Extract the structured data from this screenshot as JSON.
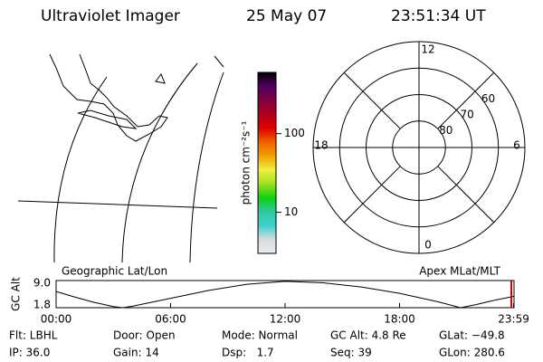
{
  "header": {
    "title": "Ultraviolet Imager",
    "date": "25 May 07",
    "time": "23:51:34 UT"
  },
  "chart_data": [
    {
      "type": "colorbar",
      "label": "photon cm⁻²s⁻¹",
      "log_scale": true,
      "ylim": [
        3,
        600
      ],
      "yticks": [
        10,
        100
      ],
      "colors": [
        "#e8eef0",
        "#d6dcdc",
        "#40d0d0",
        "#30c8a0",
        "#10d010",
        "#a0e020",
        "#f0f040",
        "#f0a000",
        "#f06000",
        "#e00000",
        "#b00020",
        "#800040",
        "#500060",
        "#000000"
      ]
    },
    {
      "type": "polar",
      "rlim": [
        90,
        50
      ],
      "rticks": [
        60,
        70,
        80
      ],
      "mlt_ticks": [
        0,
        6,
        12,
        18
      ]
    },
    {
      "type": "line",
      "ylabel": "GC Alt",
      "left_label": "Geographic Lat/Lon",
      "right_label": "Apex MLat/MLT",
      "xlim": [
        0,
        24
      ],
      "ylim": [
        1.8,
        9.0
      ],
      "xticks": [
        {
          "value": 0,
          "label": "00:00"
        },
        {
          "value": 6,
          "label": "06:00"
        },
        {
          "value": 12,
          "label": "12:00"
        },
        {
          "value": 18,
          "label": "18:00"
        },
        {
          "value": 23.98,
          "label": "23:59"
        }
      ],
      "yticks": [
        {
          "value": 9.0,
          "label": "9.0"
        },
        {
          "value": 1.8,
          "label": "1.8"
        }
      ],
      "x": [
        0,
        1,
        2,
        3,
        3.5,
        4,
        6,
        8,
        10,
        12,
        14,
        16,
        18,
        20,
        21.2,
        22,
        23,
        23.98
      ],
      "values": [
        6.1,
        4.6,
        3.2,
        2.1,
        1.8,
        2.2,
        4.3,
        6.4,
        8.0,
        8.8,
        8.4,
        7.3,
        5.6,
        3.4,
        1.8,
        2.6,
        3.8,
        4.8
      ],
      "color": "#000000",
      "marker_x": 23.86,
      "marker_color": "#c00000"
    }
  ],
  "info": [
    [
      "Flt: LBHL",
      "Door: Open",
      "Mode: Normal",
      "GC Alt: 4.8 Re",
      "GLat: −49.8"
    ],
    [
      "IP: 36.0",
      "Gain: 14",
      "Dsp:   1.7",
      "Seq: 39",
      "GLon: 280.6"
    ]
  ]
}
